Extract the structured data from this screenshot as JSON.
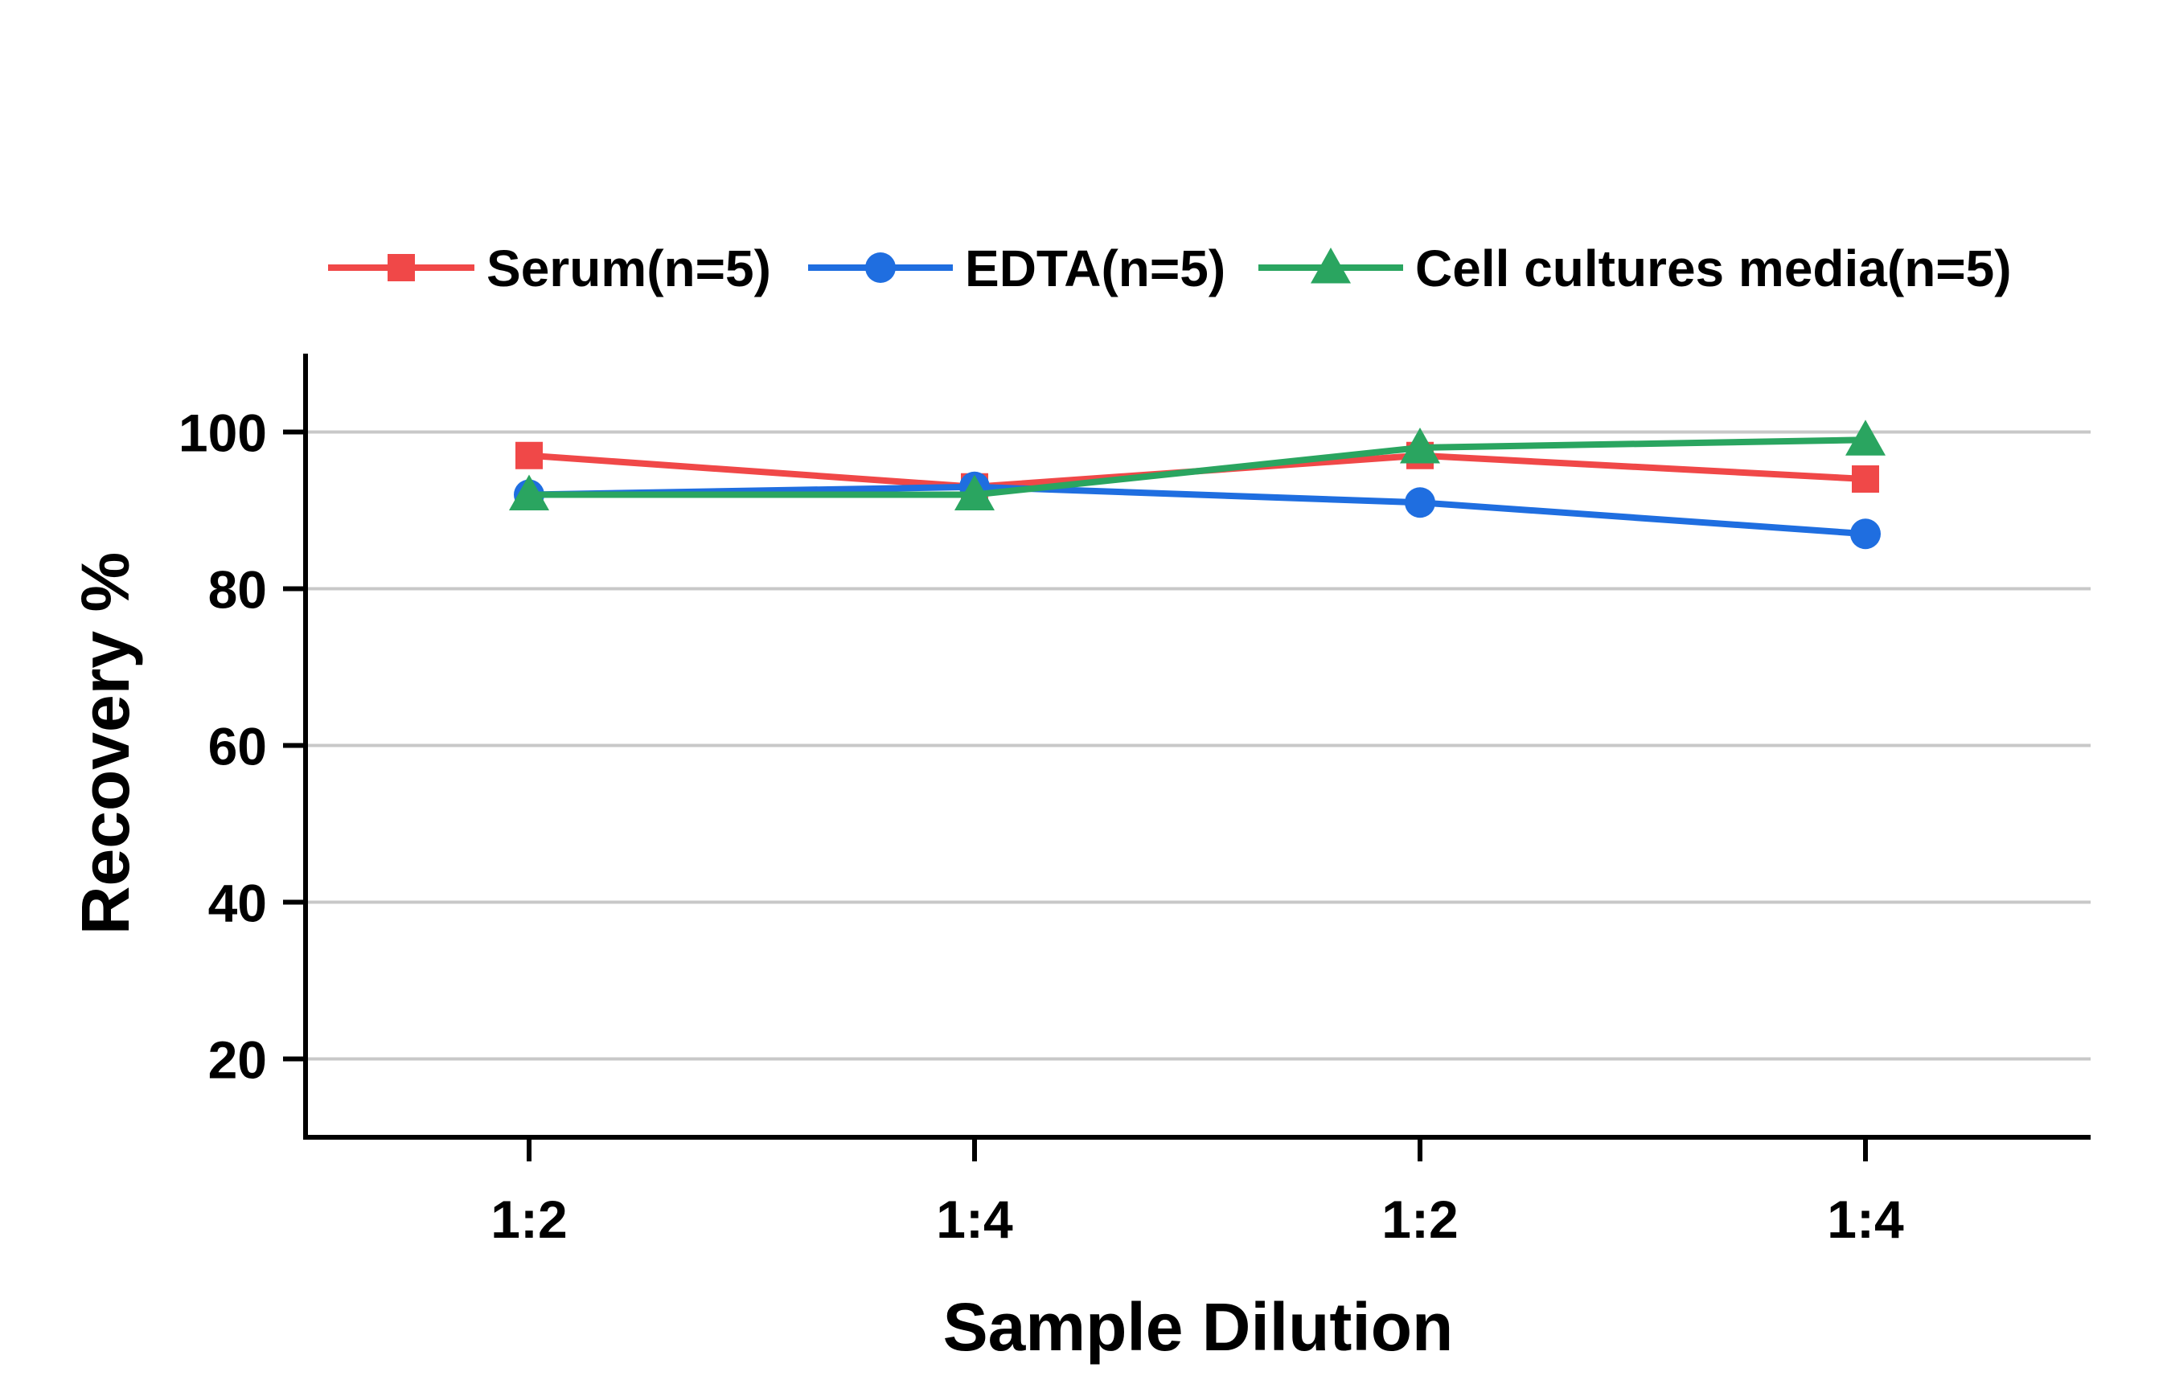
{
  "chart_data": {
    "type": "line",
    "title": "",
    "xlabel": "Sample Dilution",
    "ylabel": "Recovery %",
    "categories": [
      "1:2",
      "1:4",
      "1:2",
      "1:4"
    ],
    "ylim": [
      10,
      110
    ],
    "yticks": [
      20,
      40,
      60,
      80,
      100
    ],
    "grid": "horizontal",
    "legend_position": "top",
    "series": [
      {
        "name": "Serum(n=5)",
        "values": [
          97,
          93,
          97,
          94
        ],
        "color": "#f04848",
        "marker": "square"
      },
      {
        "name": "EDTA(n=5)",
        "values": [
          92,
          93,
          91,
          87
        ],
        "color": "#1f6ee0",
        "marker": "circle"
      },
      {
        "name": "Cell cultures media(n=5)",
        "values": [
          92,
          92,
          98,
          99
        ],
        "color": "#2aa560",
        "marker": "triangle"
      }
    ]
  }
}
